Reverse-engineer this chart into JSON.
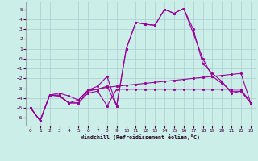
{
  "xlabel": "Windchill (Refroidissement éolien,°C)",
  "bg_color": "#cceee8",
  "grid_color": "#aacccc",
  "line_color": "#990099",
  "x_ticks": [
    0,
    1,
    2,
    3,
    4,
    5,
    6,
    7,
    8,
    9,
    10,
    11,
    12,
    13,
    14,
    15,
    16,
    17,
    18,
    19,
    20,
    21,
    22,
    23
  ],
  "y_ticks": [
    -6,
    -5,
    -4,
    -3,
    -2,
    -1,
    0,
    1,
    2,
    3,
    4,
    5
  ],
  "xlim": [
    -0.5,
    23.5
  ],
  "ylim": [
    -6.8,
    5.8
  ],
  "s1_x": [
    0,
    1,
    2,
    3,
    4,
    5,
    6,
    7,
    8,
    9,
    10,
    11,
    12,
    13,
    14,
    15,
    16,
    17,
    18,
    19,
    20,
    21,
    22,
    23
  ],
  "s1_y": [
    -5.0,
    -6.3,
    -3.7,
    -3.5,
    -3.8,
    -4.2,
    -3.2,
    -3.1,
    -2.9,
    -2.8,
    -2.7,
    -2.6,
    -2.5,
    -2.4,
    -2.3,
    -2.2,
    -2.1,
    -2.0,
    -1.9,
    -1.8,
    -1.7,
    -1.6,
    -1.5,
    -4.5
  ],
  "s2_x": [
    0,
    1,
    2,
    3,
    4,
    5,
    6,
    7,
    8,
    9,
    10,
    11,
    12,
    13,
    14,
    15,
    16,
    17,
    18,
    19,
    20,
    21,
    22,
    23
  ],
  "s2_y": [
    -5.0,
    -6.3,
    -3.7,
    -3.7,
    -4.5,
    -4.5,
    -3.3,
    -3.1,
    -2.8,
    -4.8,
    1.0,
    3.7,
    3.5,
    3.4,
    5.0,
    4.6,
    5.1,
    2.6,
    0.0,
    -1.8,
    -2.5,
    -3.3,
    -3.3,
    -4.5
  ],
  "s3_x": [
    0,
    1,
    2,
    3,
    4,
    5,
    6,
    7,
    8,
    9,
    10,
    11,
    12,
    13,
    14,
    15,
    16,
    17,
    18,
    19,
    20,
    21,
    22,
    23
  ],
  "s3_y": [
    -5.0,
    -6.3,
    -3.7,
    -3.8,
    -4.5,
    -4.5,
    -3.5,
    -3.3,
    -4.8,
    -3.1,
    -3.1,
    -3.1,
    -3.1,
    -3.1,
    -3.1,
    -3.1,
    -3.1,
    -3.1,
    -3.1,
    -3.1,
    -3.1,
    -3.1,
    -3.1,
    -4.5
  ],
  "s4_x": [
    0,
    1,
    2,
    3,
    4,
    5,
    6,
    7,
    8,
    9,
    10,
    11,
    12,
    13,
    14,
    15,
    16,
    17,
    18,
    19,
    20,
    21,
    22,
    23
  ],
  "s4_y": [
    -5.0,
    -6.3,
    -3.7,
    -3.8,
    -4.5,
    -4.2,
    -3.2,
    -2.8,
    -1.8,
    -4.8,
    1.0,
    3.7,
    3.5,
    3.4,
    5.0,
    4.6,
    5.1,
    3.0,
    -0.5,
    -1.5,
    -2.3,
    -3.5,
    -3.3,
    -4.5
  ]
}
